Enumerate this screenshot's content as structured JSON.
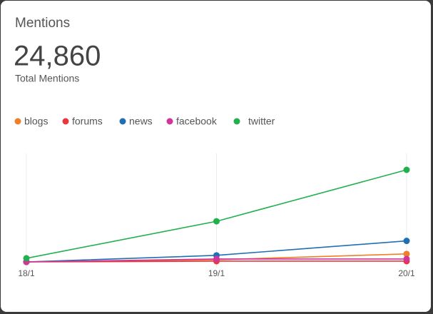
{
  "header": {
    "title": "Mentions",
    "total": "24,860",
    "total_label": "Total Mentions"
  },
  "chart_data": {
    "type": "line",
    "categories": [
      "18/1",
      "19/1",
      "20/1"
    ],
    "series": [
      {
        "name": "blogs",
        "color": "#f07f2a",
        "values": [
          0,
          300,
          1100
        ]
      },
      {
        "name": "forums",
        "color": "#e8383d",
        "values": [
          0,
          100,
          100
        ]
      },
      {
        "name": "news",
        "color": "#1f6fb5",
        "values": [
          0,
          900,
          2900
        ]
      },
      {
        "name": "facebook",
        "color": "#d0359a",
        "values": [
          0,
          400,
          400
        ]
      },
      {
        "name": "twitter",
        "color": "#22b04f",
        "values": [
          500,
          5600,
          12700
        ]
      }
    ],
    "grid": true
  }
}
